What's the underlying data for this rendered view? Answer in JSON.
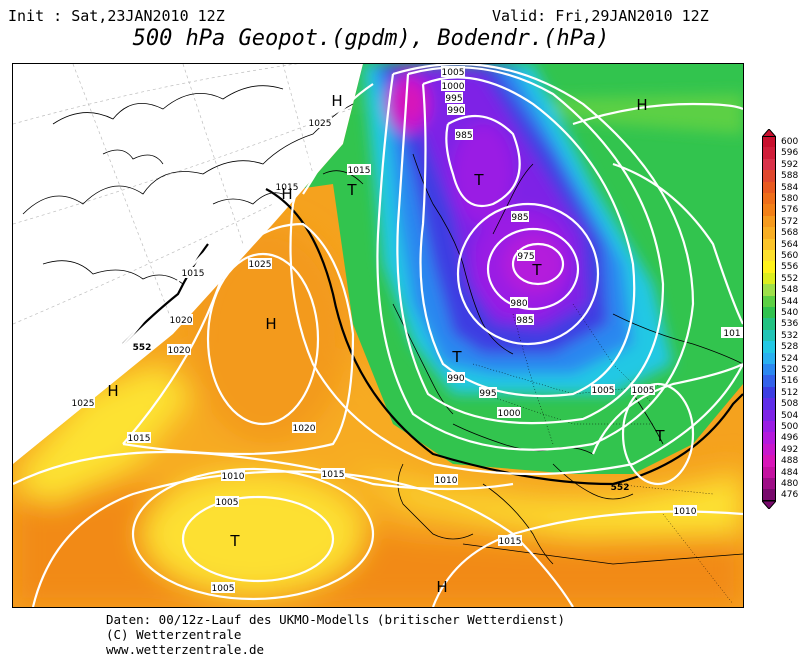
{
  "header": {
    "init": "Init : Sat,23JAN2010 12Z",
    "valid": "Valid: Fri,29JAN2010 12Z",
    "title": "500 hPa Geopot.(gpdm), Bodendr.(hPa)"
  },
  "map": {
    "pressure_centers": [
      {
        "id": "h-nw-1",
        "letter": "H"
      },
      {
        "id": "h-ne",
        "letter": "H"
      },
      {
        "id": "t-green",
        "letter": "T"
      },
      {
        "id": "h-green",
        "letter": "H"
      },
      {
        "id": "t-north",
        "letter": "T"
      },
      {
        "id": "t-main",
        "letter": "T"
      },
      {
        "id": "h-atlantic",
        "letter": "H"
      },
      {
        "id": "h-west",
        "letter": "H"
      },
      {
        "id": "t-baltic",
        "letter": "T"
      },
      {
        "id": "t-greece",
        "letter": "T"
      },
      {
        "id": "t-south",
        "letter": "T"
      },
      {
        "id": "h-africa",
        "letter": "H"
      }
    ],
    "isobar_labels": [
      "1005",
      "1000",
      "995",
      "990",
      "985",
      "1025",
      "1015",
      "1015",
      "985",
      "975",
      "980",
      "985",
      "1025",
      "1015",
      "1020",
      "1020",
      "990",
      "995",
      "1000",
      "1005",
      "1005",
      "101",
      "1025",
      "1020",
      "1015",
      "1015",
      "1010",
      "1010",
      "1005",
      "1015",
      "1010",
      "1005"
    ],
    "contour_552_labels": [
      "552",
      "552"
    ]
  },
  "legend": {
    "levels": [
      {
        "label": "600",
        "color": "#c8102e"
      },
      {
        "label": "596",
        "color": "#d01e3a"
      },
      {
        "label": "592",
        "color": "#d9324a"
      },
      {
        "label": "588",
        "color": "#e0482e"
      },
      {
        "label": "584",
        "color": "#e85a20"
      },
      {
        "label": "580",
        "color": "#ee6e1a"
      },
      {
        "label": "576",
        "color": "#f28018"
      },
      {
        "label": "572",
        "color": "#f59a1e"
      },
      {
        "label": "568",
        "color": "#f8ae24"
      },
      {
        "label": "564",
        "color": "#fbc42a"
      },
      {
        "label": "560",
        "color": "#fde02e"
      },
      {
        "label": "556",
        "color": "#fff21c"
      },
      {
        "label": "552",
        "color": "#dcee20"
      },
      {
        "label": "548",
        "color": "#9ee04a"
      },
      {
        "label": "544",
        "color": "#5cd044"
      },
      {
        "label": "540",
        "color": "#30c24e"
      },
      {
        "label": "536",
        "color": "#22c282"
      },
      {
        "label": "532",
        "color": "#22c4b6"
      },
      {
        "label": "528",
        "color": "#24c8e4"
      },
      {
        "label": "524",
        "color": "#2ab0f0"
      },
      {
        "label": "520",
        "color": "#2c88f0"
      },
      {
        "label": "516",
        "color": "#3462ea"
      },
      {
        "label": "512",
        "color": "#3c3ee2"
      },
      {
        "label": "508",
        "color": "#5e2ee8"
      },
      {
        "label": "504",
        "color": "#7e24e6"
      },
      {
        "label": "500",
        "color": "#9a1ee4"
      },
      {
        "label": "496",
        "color": "#b41adc"
      },
      {
        "label": "492",
        "color": "#c818cc"
      },
      {
        "label": "488",
        "color": "#d816b8"
      },
      {
        "label": "484",
        "color": "#c412a0"
      },
      {
        "label": "480",
        "color": "#9e0e86"
      },
      {
        "label": "476",
        "color": "#780a6c"
      }
    ]
  },
  "footer": {
    "line1": "Daten: 00/12z-Lauf des UKMO-Modells (britischer Wetterdienst)",
    "line2": "(C) Wetterzentrale",
    "line3": "www.wetterzentrale.de"
  }
}
